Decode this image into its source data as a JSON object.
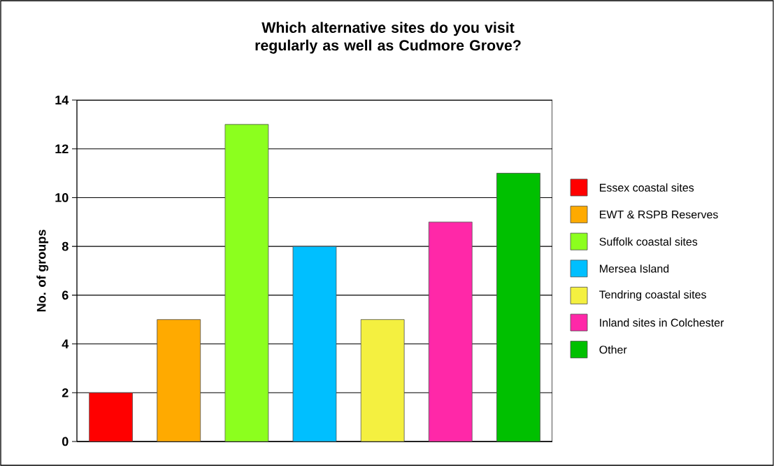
{
  "chart_data": {
    "type": "bar",
    "title": "Which alternative sites do you visit regularly as well as Cudmore Grove?",
    "ylabel": "No. of groups",
    "categories": [
      null,
      null,
      null,
      null,
      null,
      null,
      null
    ],
    "series": [
      {
        "name": "Essex coastal sites",
        "color": "#ff0000",
        "values": [
          2,
          null,
          null,
          null,
          null,
          null,
          null
        ]
      },
      {
        "name": "EWT & RSPB Reserves",
        "color": "#ffaa00",
        "values": [
          null,
          5,
          null,
          null,
          null,
          null,
          null
        ]
      },
      {
        "name": "Suffolk coastal sites",
        "color": "#8cff1e",
        "values": [
          null,
          null,
          13,
          null,
          null,
          null,
          null
        ]
      },
      {
        "name": "Mersea Island",
        "color": "#00bfff",
        "values": [
          null,
          null,
          null,
          8,
          null,
          null,
          null
        ]
      },
      {
        "name": "Tendring coastal sites",
        "color": "#f4f040",
        "values": [
          null,
          null,
          null,
          null,
          5,
          null,
          null
        ]
      },
      {
        "name": "Inland sites in Colchester",
        "color": "#ff28a8",
        "values": [
          null,
          null,
          null,
          null,
          null,
          9,
          null
        ]
      },
      {
        "name": "Other",
        "color": "#00c000",
        "values": [
          null,
          null,
          null,
          null,
          null,
          null,
          11
        ]
      }
    ],
    "ylim": [
      0,
      14
    ],
    "yticks": [
      0,
      2,
      4,
      6,
      8,
      10,
      12,
      14
    ],
    "grid": "y",
    "legend": "right"
  }
}
